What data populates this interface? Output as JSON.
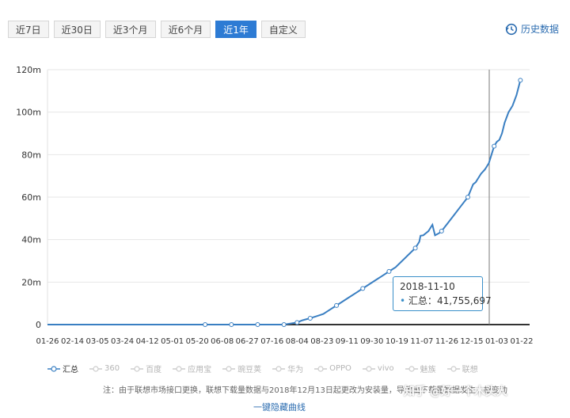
{
  "tabs": [
    {
      "label": "近7日",
      "active": false
    },
    {
      "label": "近30日",
      "active": false
    },
    {
      "label": "近3个月",
      "active": false
    },
    {
      "label": "近6个月",
      "active": false
    },
    {
      "label": "近1年",
      "active": true
    },
    {
      "label": "自定义",
      "active": false
    }
  ],
  "history_label": "历史数据",
  "tooltip": {
    "date": "2018-11-10",
    "series": "汇总",
    "value": "41,755,697"
  },
  "legend": [
    {
      "name": "汇总",
      "active": true
    },
    {
      "name": "360",
      "active": false
    },
    {
      "name": "百度",
      "active": false
    },
    {
      "name": "应用宝",
      "active": false
    },
    {
      "name": "豌豆荚",
      "active": false
    },
    {
      "name": "华为",
      "active": false
    },
    {
      "name": "OPPO",
      "active": false
    },
    {
      "name": "vivo",
      "active": false
    },
    {
      "name": "魅族",
      "active": false
    },
    {
      "name": "联想",
      "active": false
    }
  ],
  "note": "注：由于联想市场接口更换，联想下载量数据与2018年12月13日起更改为安装量，导致出下载量数据发生大幅变动",
  "hide_link": "一键隐藏曲线",
  "watermark": "知乎 @好一个木头人",
  "colors": {
    "series": "#3a7fc2",
    "accent": "#2d7bd4",
    "cursor": "#777777"
  },
  "chart_data": {
    "type": "line",
    "y_ticks": [
      "0",
      "20m",
      "40m",
      "60m",
      "80m",
      "100m",
      "120m"
    ],
    "ylim": [
      0,
      120
    ],
    "x_ticks": [
      "01-26",
      "02-14",
      "03-05",
      "03-24",
      "04-12",
      "05-01",
      "05-20",
      "06-08",
      "06-27",
      "07-16",
      "08-04",
      "08-23",
      "09-11",
      "09-30",
      "10-19",
      "11-07",
      "11-26",
      "12-15",
      "01-03",
      "01-22"
    ],
    "series": [
      {
        "name": "汇总",
        "x": [
          0,
          120,
          150,
          180,
          190,
          194,
          200,
          205,
          210,
          215,
          220,
          225,
          230,
          235,
          240,
          245,
          250,
          255,
          260,
          265,
          270,
          275,
          280,
          283,
          284,
          286,
          290,
          293,
          295,
          298,
          300,
          305,
          310,
          315,
          320,
          322,
          324,
          326,
          328,
          330,
          333,
          336,
          340,
          342,
          344,
          346,
          348,
          351,
          354,
          357,
          360
        ],
        "y": [
          0,
          0,
          0,
          0,
          1,
          2,
          3,
          4,
          5,
          7,
          9,
          11,
          13,
          15,
          17,
          19,
          21,
          23,
          25,
          27,
          30,
          33,
          36,
          39,
          41.8,
          42,
          44,
          47,
          42,
          43,
          44,
          48,
          52,
          56,
          60,
          63,
          66,
          67,
          69,
          71,
          73,
          76,
          84,
          86,
          87,
          90,
          95,
          100,
          103,
          108,
          115
        ]
      }
    ],
    "x_axis_note": "x values = day offset from 01-26; tick interval 19 days"
  }
}
